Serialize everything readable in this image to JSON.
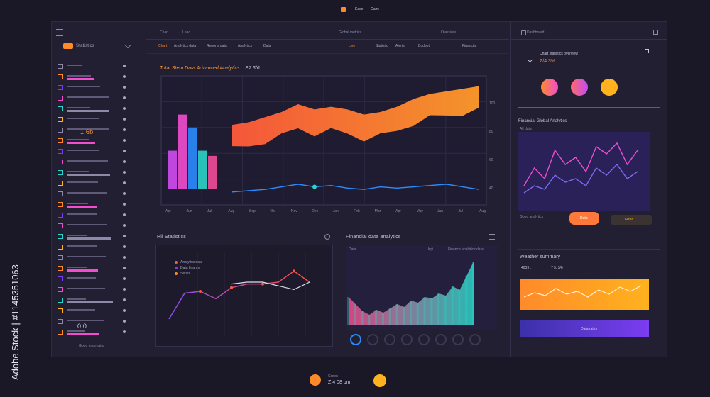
{
  "topbar": {
    "items": [
      "Ease",
      "Gaze"
    ]
  },
  "sidebar": {
    "title": "Statistics",
    "stats": [
      "1 6b",
      "0 0"
    ],
    "footer": "Good informatio"
  },
  "nav": {
    "header_items": [
      "Chart",
      "Lead",
      "Global metrics",
      "Overview"
    ],
    "tabs": [
      "Chart",
      "Analytics data",
      "Reports data",
      "Analytics",
      "Data",
      "Live",
      "Statistic",
      "Alerts",
      "Budget",
      "Financial"
    ]
  },
  "main_chart": {
    "title": "Total Stem Data Advanced Analytics",
    "badge": "E2 3/6",
    "x_ticks": [
      "Apr",
      "Jun",
      "Jul",
      "Aug",
      "Sep",
      "Oct",
      "Nov",
      "Dec",
      "Jan",
      "Feb",
      "Mar",
      "Apr",
      "May",
      "Jun",
      "Jul",
      "Aug"
    ],
    "y_ticks": [
      "100",
      "80",
      "60",
      "40"
    ]
  },
  "bottom_left": {
    "title": "Hil Statistics",
    "legend": [
      "Analytics data",
      "Data finance",
      "Series"
    ]
  },
  "bottom_right": {
    "title": "Financial data analytics",
    "header_labels": [
      "Data",
      "Kpi",
      "Finance analytics data"
    ]
  },
  "right_panel": {
    "header": "Dashboard",
    "summary": "Chart statistics overview",
    "summary_value": "Z/4 3%",
    "line_chart_title": "Financial Global Analytics",
    "line_chart_subtitle": "All data",
    "button_label": "Data",
    "button2_label": "Filter",
    "note": "Good analytics",
    "area_title": "Weather summary",
    "area_values": [
      "4039 .",
      "7 5. 3/6"
    ],
    "bar_label": "Data rates"
  },
  "footer": {
    "label": "Green",
    "value": "Z,4 08 pm"
  },
  "watermark_text": "Adobe Stock | #1145351063",
  "chart_data": [
    {
      "type": "area",
      "title": "Total Stem Data Advanced Analytics",
      "x": [
        "Apr",
        "Jun",
        "Jul",
        "Aug",
        "Sep",
        "Oct",
        "Nov",
        "Dec",
        "Jan",
        "Feb",
        "Mar",
        "Apr",
        "May",
        "Jun",
        "Jul",
        "Aug"
      ],
      "series": [
        {
          "values": [
            62,
            64,
            68,
            72,
            78,
            74,
            76,
            74,
            70,
            72,
            76,
            82,
            86,
            88,
            90,
            92
          ]
        },
        {
          "values": [
            10,
            11,
            12,
            14,
            16,
            14,
            15,
            13,
            12,
            14,
            13,
            14,
            15,
            16,
            14,
            12
          ]
        }
      ],
      "bars": [
        42,
        70,
        60,
        42,
        38
      ],
      "ylim": [
        0,
        100
      ]
    },
    {
      "type": "line",
      "series": [
        {
          "values": [
            20,
            48,
            50,
            42,
            54,
            58,
            58,
            60,
            72,
            60
          ]
        },
        {
          "values": [
            null,
            null,
            null,
            null,
            38,
            40,
            40,
            36,
            32,
            40
          ]
        }
      ],
      "ylim": [
        0,
        100
      ]
    },
    {
      "type": "area",
      "series": [
        {
          "values": [
            40,
            30,
            20,
            15,
            22,
            18,
            24,
            30,
            26,
            35,
            32,
            40,
            38,
            45,
            42,
            55,
            50,
            70,
            90
          ]
        }
      ],
      "ylim": [
        0,
        100
      ]
    },
    {
      "type": "line",
      "series": [
        {
          "values": [
            30,
            55,
            40,
            80,
            60,
            70,
            50,
            85,
            75,
            90,
            60,
            80
          ]
        },
        {
          "values": [
            20,
            30,
            25,
            45,
            35,
            40,
            30,
            55,
            45,
            60,
            40,
            50
          ]
        }
      ],
      "ylim": [
        0,
        100
      ]
    }
  ],
  "colors": {
    "accent_orange": "#ff8a2a",
    "accent_pink": "#f24ccf",
    "accent_blue": "#2b8cff",
    "accent_purple": "#7b3df2"
  }
}
